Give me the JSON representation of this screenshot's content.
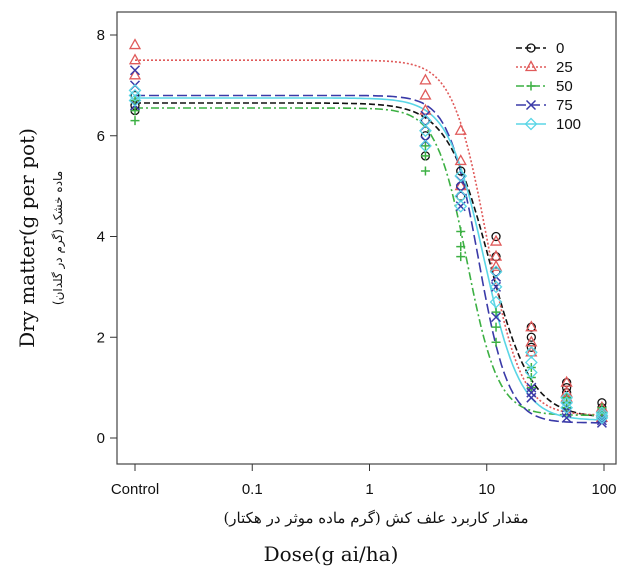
{
  "chart_data": {
    "type": "line",
    "xscale": "log",
    "xlim": [
      0.01,
      100
    ],
    "ylim": [
      0,
      8
    ],
    "x_ticks": [
      {
        "value": 0.01,
        "label": "Control"
      },
      {
        "value": 0.1,
        "label": "0.1"
      },
      {
        "value": 1,
        "label": "1"
      },
      {
        "value": 10,
        "label": "10"
      },
      {
        "value": 100,
        "label": "100"
      }
    ],
    "y_ticks": [
      {
        "value": 0,
        "label": "0"
      },
      {
        "value": 2,
        "label": "2"
      },
      {
        "value": 4,
        "label": "4"
      },
      {
        "value": 6,
        "label": "6"
      },
      {
        "value": 8,
        "label": "8"
      }
    ],
    "ylabel": "Dry matter(g per pot)",
    "ylabel_secondary": "ماده خشک (گرم در گلدان)",
    "xlabel_secondary": "مقدار کاربرد علف کش (گرم ماده موثر در هکتار)",
    "xlabel": "Dose(g ai/ha)",
    "legend": {
      "placement": "top-right"
    },
    "series": [
      {
        "name": "0",
        "color": "#111111",
        "marker": "circle",
        "dash": "6,3",
        "curve": {
          "upper": 6.65,
          "lower": 0.4,
          "ed50": 10.5,
          "slope": 2.4
        },
        "points": [
          [
            0.01,
            6.5
          ],
          [
            0.01,
            6.8
          ],
          [
            0.01,
            6.6
          ],
          [
            3,
            6.0
          ],
          [
            3,
            5.6
          ],
          [
            3,
            6.3
          ],
          [
            6,
            5.0
          ],
          [
            6,
            5.3
          ],
          [
            6,
            4.8
          ],
          [
            12,
            3.6
          ],
          [
            12,
            4.0
          ],
          [
            12,
            3.3
          ],
          [
            24,
            2.0
          ],
          [
            24,
            2.2
          ],
          [
            24,
            1.8
          ],
          [
            48,
            1.1
          ],
          [
            48,
            0.9
          ],
          [
            48,
            1.0
          ],
          [
            96,
            0.6
          ],
          [
            96,
            0.7
          ],
          [
            96,
            0.5
          ]
        ]
      },
      {
        "name": "25",
        "color": "#e05a5a",
        "marker": "triangle",
        "dash": "2,2",
        "curve": {
          "upper": 7.5,
          "lower": 0.45,
          "ed50": 10.0,
          "slope": 3.0
        },
        "points": [
          [
            0.01,
            7.8
          ],
          [
            0.01,
            7.5
          ],
          [
            0.01,
            7.2
          ],
          [
            3,
            7.1
          ],
          [
            3,
            6.8
          ],
          [
            3,
            6.5
          ],
          [
            6,
            6.1
          ],
          [
            6,
            5.5
          ],
          [
            6,
            5.0
          ],
          [
            12,
            3.9
          ],
          [
            12,
            3.6
          ],
          [
            12,
            3.4
          ],
          [
            24,
            2.2
          ],
          [
            24,
            1.9
          ],
          [
            24,
            1.7
          ],
          [
            48,
            1.1
          ],
          [
            48,
            0.9
          ],
          [
            48,
            0.8
          ],
          [
            96,
            0.6
          ],
          [
            96,
            0.5
          ],
          [
            96,
            0.4
          ]
        ]
      },
      {
        "name": "50",
        "color": "#3cb043",
        "marker": "plus",
        "dash": "8,3,2,3",
        "curve": {
          "upper": 6.55,
          "lower": 0.45,
          "ed50": 6.8,
          "slope": 3.3
        },
        "points": [
          [
            0.01,
            6.3
          ],
          [
            0.01,
            6.5
          ],
          [
            0.01,
            6.7
          ],
          [
            3,
            5.6
          ],
          [
            3,
            5.3
          ],
          [
            3,
            5.8
          ],
          [
            6,
            4.1
          ],
          [
            6,
            3.8
          ],
          [
            6,
            3.6
          ],
          [
            12,
            2.2
          ],
          [
            12,
            1.9
          ],
          [
            12,
            2.5
          ],
          [
            24,
            1.2
          ],
          [
            24,
            1.0
          ],
          [
            24,
            1.4
          ],
          [
            48,
            0.8
          ],
          [
            48,
            0.6
          ],
          [
            48,
            0.7
          ],
          [
            96,
            0.5
          ],
          [
            96,
            0.4
          ],
          [
            96,
            0.6
          ]
        ]
      },
      {
        "name": "75",
        "color": "#3a3aa8",
        "marker": "cross",
        "dash": "10,4",
        "curve": {
          "upper": 6.8,
          "lower": 0.3,
          "ed50": 8.5,
          "slope": 3.4
        },
        "points": [
          [
            0.01,
            7.3
          ],
          [
            0.01,
            7.0
          ],
          [
            0.01,
            6.6
          ],
          [
            3,
            6.2
          ],
          [
            3,
            5.9
          ],
          [
            3,
            6.4
          ],
          [
            6,
            4.6
          ],
          [
            6,
            4.9
          ],
          [
            6,
            5.1
          ],
          [
            12,
            3.0
          ],
          [
            12,
            2.4
          ],
          [
            12,
            3.2
          ],
          [
            24,
            0.8
          ],
          [
            24,
            1.0
          ],
          [
            24,
            0.9
          ],
          [
            48,
            0.4
          ],
          [
            48,
            0.5
          ],
          [
            48,
            0.6
          ],
          [
            96,
            0.3
          ],
          [
            96,
            0.4
          ],
          [
            96,
            0.35
          ]
        ]
      },
      {
        "name": "100",
        "color": "#5bd6e6",
        "marker": "diamond",
        "dash": "",
        "curve": {
          "upper": 6.75,
          "lower": 0.35,
          "ed50": 9.5,
          "slope": 2.8
        },
        "points": [
          [
            0.01,
            6.9
          ],
          [
            0.01,
            6.7
          ],
          [
            0.01,
            6.8
          ],
          [
            3,
            6.1
          ],
          [
            3,
            6.3
          ],
          [
            3,
            5.8
          ],
          [
            6,
            5.2
          ],
          [
            6,
            4.8
          ],
          [
            6,
            4.6
          ],
          [
            12,
            3.3
          ],
          [
            12,
            3.0
          ],
          [
            12,
            2.7
          ],
          [
            24,
            1.5
          ],
          [
            24,
            1.7
          ],
          [
            24,
            1.3
          ],
          [
            48,
            0.8
          ],
          [
            48,
            0.6
          ],
          [
            48,
            0.7
          ],
          [
            96,
            0.5
          ],
          [
            96,
            0.4
          ],
          [
            96,
            0.45
          ]
        ]
      }
    ]
  }
}
